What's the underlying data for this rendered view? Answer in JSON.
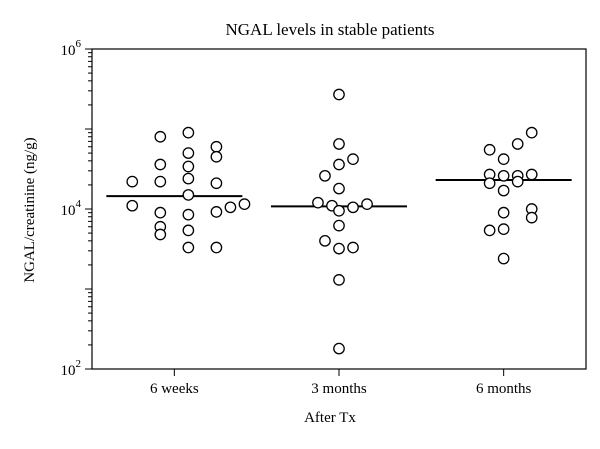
{
  "chart_data": {
    "type": "scatter",
    "title": "NGAL levels in stable patients",
    "xlabel": "After Tx",
    "ylabel": "NGAL/creatinine (ng/g)",
    "y_scale": "log",
    "ylim": [
      100,
      1000000
    ],
    "y_ticks": [
      {
        "value": 100,
        "base": "10",
        "exp": "2"
      },
      {
        "value": 10000,
        "base": "10",
        "exp": "4"
      },
      {
        "value": 1000000,
        "base": "10",
        "exp": "6"
      }
    ],
    "categories": [
      "6 weeks",
      "3 months",
      "6 months"
    ],
    "groups": [
      {
        "category": "6 weeks",
        "median": 14500,
        "points": [
          {
            "y": 80000,
            "offset": -1
          },
          {
            "y": 90000,
            "offset": 1
          },
          {
            "y": 50000,
            "offset": 1
          },
          {
            "y": 60000,
            "offset": 3
          },
          {
            "y": 45000,
            "offset": 3
          },
          {
            "y": 36000,
            "offset": -1
          },
          {
            "y": 34000,
            "offset": 1
          },
          {
            "y": 22000,
            "offset": -3
          },
          {
            "y": 22000,
            "offset": -1
          },
          {
            "y": 24000,
            "offset": 1
          },
          {
            "y": 21000,
            "offset": 3
          },
          {
            "y": 15000,
            "offset": 1
          },
          {
            "y": 11000,
            "offset": -3
          },
          {
            "y": 9000,
            "offset": -1
          },
          {
            "y": 8500,
            "offset": 1
          },
          {
            "y": 9200,
            "offset": 3
          },
          {
            "y": 10500,
            "offset": 4
          },
          {
            "y": 11500,
            "offset": 5
          },
          {
            "y": 6000,
            "offset": -1
          },
          {
            "y": 4800,
            "offset": -1
          },
          {
            "y": 5400,
            "offset": 1
          },
          {
            "y": 3300,
            "offset": 1
          },
          {
            "y": 3300,
            "offset": 3
          }
        ]
      },
      {
        "category": "3 months",
        "median": 10800,
        "points": [
          {
            "y": 270000,
            "offset": 0
          },
          {
            "y": 65000,
            "offset": 0
          },
          {
            "y": 42000,
            "offset": 1
          },
          {
            "y": 36000,
            "offset": 0
          },
          {
            "y": 26000,
            "offset": -1
          },
          {
            "y": 18000,
            "offset": 0
          },
          {
            "y": 12000,
            "offset": -1.5
          },
          {
            "y": 11000,
            "offset": -0.5
          },
          {
            "y": 10500,
            "offset": 1
          },
          {
            "y": 11500,
            "offset": 2
          },
          {
            "y": 9500,
            "offset": 0
          },
          {
            "y": 6200,
            "offset": 0
          },
          {
            "y": 4000,
            "offset": -1
          },
          {
            "y": 3200,
            "offset": 0
          },
          {
            "y": 3300,
            "offset": 1
          },
          {
            "y": 1300,
            "offset": 0
          },
          {
            "y": 180,
            "offset": 0
          }
        ]
      },
      {
        "category": "6 months",
        "median": 23000,
        "points": [
          {
            "y": 90000,
            "offset": 2
          },
          {
            "y": 65000,
            "offset": 1
          },
          {
            "y": 55000,
            "offset": -1
          },
          {
            "y": 42000,
            "offset": 0
          },
          {
            "y": 27000,
            "offset": -1
          },
          {
            "y": 26000,
            "offset": 0
          },
          {
            "y": 26000,
            "offset": 1
          },
          {
            "y": 27000,
            "offset": 2
          },
          {
            "y": 21000,
            "offset": -1
          },
          {
            "y": 22000,
            "offset": 1
          },
          {
            "y": 17000,
            "offset": 0
          },
          {
            "y": 10000,
            "offset": 2
          },
          {
            "y": 9000,
            "offset": 0
          },
          {
            "y": 7800,
            "offset": 2
          },
          {
            "y": 5400,
            "offset": -1
          },
          {
            "y": 5600,
            "offset": 0
          },
          {
            "y": 2400,
            "offset": 0
          }
        ]
      }
    ],
    "colors": {
      "marker_fill": "#ffffff",
      "marker_stroke": "#000000",
      "median_line": "#000000"
    },
    "grid": false,
    "legend": "none"
  }
}
